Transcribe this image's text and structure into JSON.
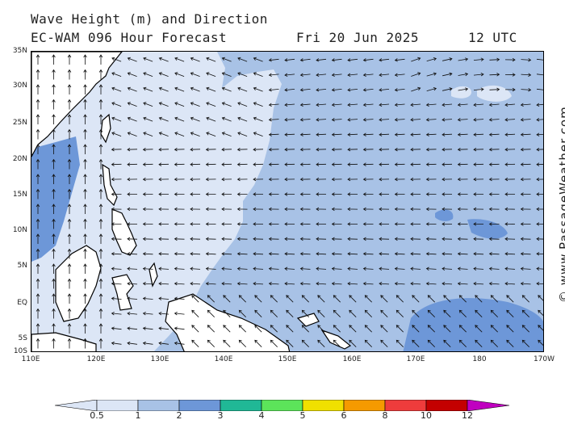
{
  "header": {
    "title_line1": "Wave Height (m) and Direction",
    "title_line2": "EC-WAM 096 Hour Forecast",
    "date": "Fri 20 Jun 2025",
    "time": "12 UTC"
  },
  "credit": "© www.PassageWeather.com",
  "map": {
    "lon_range": [
      110,
      190
    ],
    "lat_range": [
      -10,
      35
    ],
    "lat_labels": [
      "35N",
      "30N",
      "25N",
      "20N",
      "15N",
      "10N",
      "5N",
      "EQ",
      "5S",
      "10S"
    ],
    "lon_labels": [
      "110E",
      "120E",
      "130E",
      "140E",
      "150E",
      "160E",
      "170E",
      "180",
      "170W"
    ]
  },
  "legend": {
    "labels": [
      "0.5",
      "1",
      "2",
      "3",
      "4",
      "5",
      "6",
      "8",
      "10",
      "12"
    ],
    "colors": [
      "#dce6f6",
      "#a8c2e6",
      "#6d97d8",
      "#20b896",
      "#5ce45a",
      "#f0e000",
      "#f59a00",
      "#ee3c3c",
      "#c40000",
      "#c000c0"
    ]
  }
}
